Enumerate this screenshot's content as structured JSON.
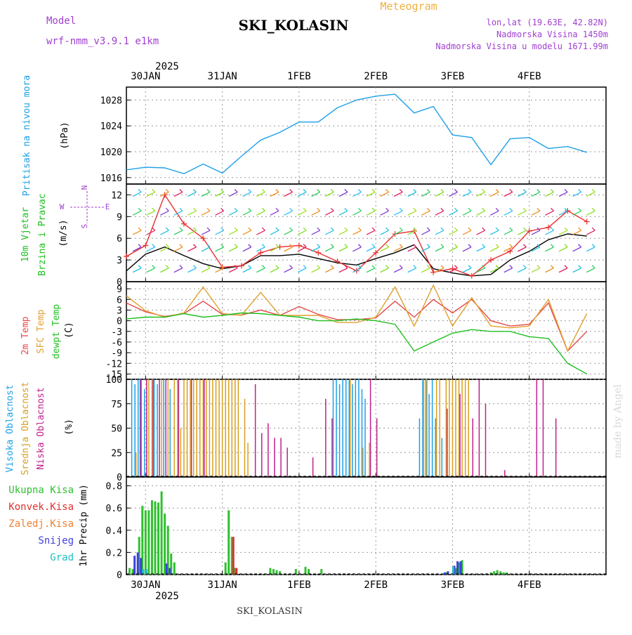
{
  "header": {
    "model_label": "Model",
    "model_name": "wrf-nmm_v3.9.1 e1km",
    "station": "SKI_KOLASIN",
    "meteogram": "Meteogram",
    "lonlat": "lon,lat (19.63E, 42.82N)",
    "altitude": "Nadmorska Visina 1450m",
    "model_altitude": "Nadmorska Visina u modelu 1671.99m",
    "footer_station": "SKI_KOLASIN",
    "watermark": "made by Angel",
    "year_top": "2025",
    "year_bottom": "2025"
  },
  "colors": {
    "pressure": "#1ea0e6",
    "wind_speed": "#000000",
    "wind_gust": "#e83030",
    "t2m": "#e84848",
    "tsfc": "#e0a030",
    "dewpoint": "#20c020",
    "cloud_high": "#1ea0e6",
    "cloud_mid": "#d8a020",
    "cloud_low": "#c0208a",
    "precip_total": "#30c030",
    "precip_conv": "#e03030",
    "precip_frozen": "#f08030",
    "precip_snow": "#4040e0",
    "precip_hail": "#20c0c0",
    "label_purple": "#a040d0",
    "label_orange": "#f0b040"
  },
  "chart_data": [
    {
      "type": "line",
      "panel": "pressure",
      "ylabel_lines": [
        "Pritisak na nivou mora",
        "(hPa)"
      ],
      "yticks": [
        1016,
        1020,
        1024,
        1028
      ],
      "ylim": [
        1015,
        1030
      ],
      "xticks": [
        "30JAN",
        "31JAN",
        "1FEB",
        "2FEB",
        "3FEB",
        "4FEB"
      ],
      "x_hours": [
        0,
        6,
        12,
        18,
        24,
        30,
        36,
        42,
        48,
        54,
        60,
        66,
        72,
        78,
        84,
        90,
        96,
        102,
        108,
        114,
        120,
        126,
        132,
        138,
        144
      ],
      "series": [
        {
          "values": [
            1017.2,
            1017.6,
            1017.5,
            1016.6,
            1018.1,
            1016.7,
            1019.3,
            1021.8,
            1023.0,
            1024.6,
            1024.6,
            1026.8,
            1028.0,
            1028.6,
            1028.9,
            1026.0,
            1027.0,
            1022.6,
            1022.2,
            1018.0,
            1022.0,
            1022.2,
            1020.5,
            1020.8,
            1019.9
          ]
        }
      ]
    },
    {
      "type": "line",
      "panel": "wind",
      "ylabel_lines": [
        "10m Vjetar",
        "Brzina i Pravac",
        "(m/s)"
      ],
      "compass": [
        "N",
        "E",
        "S",
        "W"
      ],
      "yticks": [
        0,
        3,
        6,
        9,
        12
      ],
      "ylim": [
        0,
        13.5
      ],
      "series": [
        {
          "name_key": "speed",
          "values": [
            1.5,
            3.8,
            4.8,
            3.6,
            2.5,
            1.8,
            2.2,
            3.6,
            3.6,
            3.8,
            3.2,
            2.6,
            2.3,
            3.2,
            4.0,
            5.1,
            1.8,
            1.2,
            0.8,
            1.0,
            3.0,
            4.2,
            5.8,
            6.6,
            6.3
          ]
        },
        {
          "name_key": "gust",
          "values": [
            3.5,
            5.0,
            12.0,
            8.0,
            6.0,
            2.0,
            2.2,
            4.0,
            4.8,
            5.0,
            4.0,
            2.8,
            1.5,
            4.0,
            6.6,
            7.0,
            1.3,
            1.8,
            0.8,
            3.0,
            4.2,
            7.0,
            7.5,
            9.8,
            8.3
          ]
        }
      ]
    },
    {
      "type": "line",
      "panel": "temperature",
      "ylabel_lines": [
        "2m Temp",
        "SFC Temp",
        "dewpt Temp",
        "(C)"
      ],
      "yticks": [
        -15,
        -12,
        -9,
        -6,
        -3,
        0,
        3,
        6,
        9
      ],
      "ylim": [
        -16.5,
        11
      ],
      "series": [
        {
          "name_key": "t2m",
          "values": [
            5.0,
            2.5,
            1.2,
            2.0,
            5.5,
            1.8,
            1.6,
            3.0,
            1.5,
            4.0,
            1.8,
            0.3,
            0.3,
            0.8,
            5.5,
            1.0,
            6.0,
            2.2,
            6.0,
            0.0,
            -1.5,
            -1.0,
            5.0,
            -8.5,
            -3.0
          ]
        },
        {
          "name_key": "tsfc",
          "values": [
            7.0,
            2.8,
            1.0,
            2.2,
            9.5,
            2.0,
            1.5,
            8.0,
            1.5,
            1.5,
            1.5,
            -0.5,
            -0.5,
            1.0,
            9.5,
            -1.5,
            10.0,
            -1.5,
            6.5,
            -1.5,
            -2.0,
            -1.5,
            6.0,
            -8.5,
            2.0
          ]
        },
        {
          "name_key": "dewpoint",
          "values": [
            0.5,
            1.0,
            1.0,
            2.0,
            1.0,
            1.5,
            2.2,
            2.0,
            1.5,
            1.0,
            0.0,
            0.0,
            0.5,
            0.0,
            -1.0,
            -8.5,
            -6.0,
            -3.5,
            -2.5,
            -3.0,
            -3.0,
            -4.5,
            -5.0,
            -12.0,
            -15.0
          ]
        }
      ]
    },
    {
      "type": "bar",
      "panel": "clouds",
      "ylabel_lines": [
        "Visoka Oblacnost",
        "Srednja Oblacnost",
        "Niska Oblacnost",
        "(%)"
      ],
      "yticks": [
        0,
        25,
        50,
        75,
        100
      ],
      "ylim": [
        0,
        100
      ],
      "series": [
        {
          "name_key": "high",
          "hours": [
            2,
            3,
            4,
            5,
            6,
            9,
            10,
            12,
            14,
            65,
            66,
            67,
            68,
            69,
            70,
            71,
            72,
            73,
            74,
            75,
            92,
            93,
            94,
            95,
            96,
            97,
            99
          ],
          "values": [
            100,
            95,
            100,
            100,
            90,
            100,
            95,
            100,
            90,
            100,
            100,
            95,
            100,
            100,
            100,
            95,
            100,
            100,
            90,
            80,
            60,
            100,
            100,
            85,
            100,
            60,
            40
          ]
        },
        {
          "name_key": "mid",
          "hours": [
            3,
            7,
            8,
            11,
            13,
            15,
            16,
            17,
            18,
            19,
            20,
            21,
            22,
            23,
            24,
            25,
            26,
            27,
            28,
            29,
            30,
            31,
            32,
            33,
            34,
            35,
            37,
            38,
            70,
            74,
            76,
            93,
            94,
            97,
            98,
            100,
            101,
            102,
            103,
            104,
            105,
            106,
            107
          ],
          "values": [
            25,
            100,
            100,
            100,
            100,
            100,
            100,
            50,
            100,
            100,
            100,
            100,
            100,
            100,
            100,
            100,
            100,
            100,
            100,
            100,
            100,
            100,
            100,
            100,
            100,
            100,
            80,
            35,
            100,
            30,
            35,
            100,
            100,
            100,
            100,
            100,
            100,
            100,
            100,
            100,
            100,
            100,
            100
          ]
        },
        {
          "name_key": "low",
          "hours": [
            4,
            6,
            8,
            10,
            12,
            16,
            20,
            24,
            40,
            42,
            44,
            46,
            48,
            50,
            58,
            62,
            64,
            76,
            78,
            100,
            104,
            108,
            110,
            112,
            118,
            128,
            130,
            134
          ],
          "values": [
            100,
            100,
            100,
            100,
            100,
            100,
            100,
            100,
            95,
            45,
            55,
            40,
            40,
            30,
            20,
            80,
            60,
            100,
            60,
            70,
            85,
            60,
            100,
            75,
            7,
            100,
            100,
            60
          ]
        }
      ]
    },
    {
      "type": "bar",
      "panel": "precip",
      "ylabel_lines": [
        "1hr Precip (mm)"
      ],
      "legend": [
        "Ukupna Kisa",
        "Konvek.Kisa",
        "Zaledj.Kisa",
        "Snijeg",
        "Grad"
      ],
      "yticks": [
        0,
        0.2,
        0.4,
        0.6,
        0.8
      ],
      "ylim": [
        0,
        0.88
      ],
      "series": [
        {
          "name_key": "total",
          "hours": [
            1,
            2,
            4,
            5,
            6,
            7,
            8,
            9,
            10,
            11,
            12,
            13,
            14,
            15,
            31,
            32,
            33,
            34,
            45,
            46,
            47,
            48,
            53,
            56,
            57,
            61,
            100,
            103,
            104,
            105,
            114,
            115,
            116,
            117,
            118,
            119
          ],
          "values": [
            0.06,
            0.05,
            0.34,
            0.62,
            0.58,
            0.58,
            0.67,
            0.66,
            0.65,
            0.75,
            0.55,
            0.44,
            0.19,
            0.11,
            0.11,
            0.58,
            0.34,
            0.06,
            0.06,
            0.05,
            0.04,
            0.03,
            0.05,
            0.07,
            0.05,
            0.05,
            0.02,
            0.06,
            0.11,
            0.13,
            0.02,
            0.03,
            0.04,
            0.03,
            0.02,
            0.02
          ]
        },
        {
          "name_key": "conv",
          "hours": [
            33,
            34
          ],
          "values": [
            0.34,
            0.06
          ]
        },
        {
          "name_key": "snow",
          "hours": [
            3,
            4,
            5,
            13,
            14,
            100,
            101,
            103,
            104,
            105
          ],
          "values": [
            0.17,
            0.2,
            0.15,
            0.1,
            0.06,
            0.02,
            0.03,
            0.08,
            0.12,
            0.12
          ]
        },
        {
          "name_key": "hail",
          "hours": [
            5,
            6,
            102
          ],
          "values": [
            0.05,
            0.05,
            0.07
          ]
        }
      ]
    }
  ]
}
